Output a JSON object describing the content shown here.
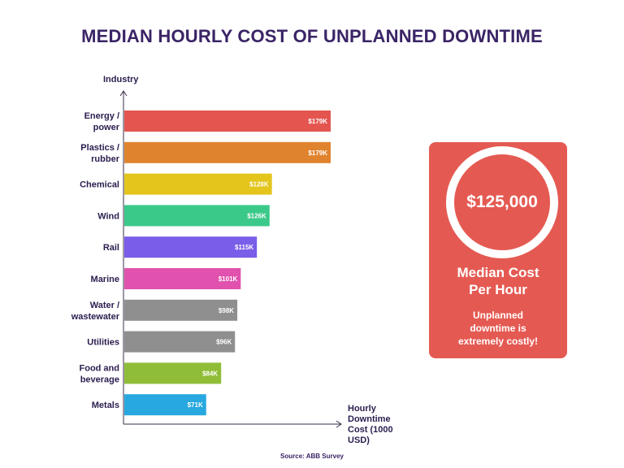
{
  "title": "MEDIAN HOURLY COST OF UNPLANNED DOWNTIME",
  "source": "Source: ABB Survey",
  "callout": {
    "value": "$125,000",
    "title_line1": "Median Cost",
    "title_line2": "Per Hour",
    "note_line1": "Unplanned",
    "note_line2": "downtime is",
    "note_line3": "extremely costly!",
    "color": "#e45a52"
  },
  "chart_data": {
    "type": "bar",
    "orientation": "horizontal",
    "ylabel": "Industry",
    "xlabel_lines": [
      "Hourly",
      "Downtime",
      "Cost (1000",
      "USD)"
    ],
    "categories": [
      [
        "Energy /",
        "power"
      ],
      [
        "Plastics /",
        "rubber"
      ],
      [
        "Chemical"
      ],
      [
        "Wind"
      ],
      [
        "Rail"
      ],
      [
        "Marine"
      ],
      [
        "Water /",
        "wastewater"
      ],
      [
        "Utilities"
      ],
      [
        "Food and",
        "beverage"
      ],
      [
        "Metals"
      ]
    ],
    "values": [
      179,
      179,
      128,
      126,
      115,
      101,
      98,
      96,
      84,
      71
    ],
    "value_labels": [
      "$179K",
      "$179K",
      "$128K",
      "$126K",
      "$115K",
      "$101K",
      "$98K",
      "$96K",
      "$84K",
      "$71K"
    ],
    "colors": [
      "#e4554f",
      "#e0832e",
      "#e3c51c",
      "#3bc98a",
      "#7a5de8",
      "#e052ad",
      "#8f8f8f",
      "#8f8f8f",
      "#8fbd37",
      "#27a8df"
    ],
    "xlim": [
      0,
      200
    ],
    "grid": false,
    "legend": "none"
  }
}
